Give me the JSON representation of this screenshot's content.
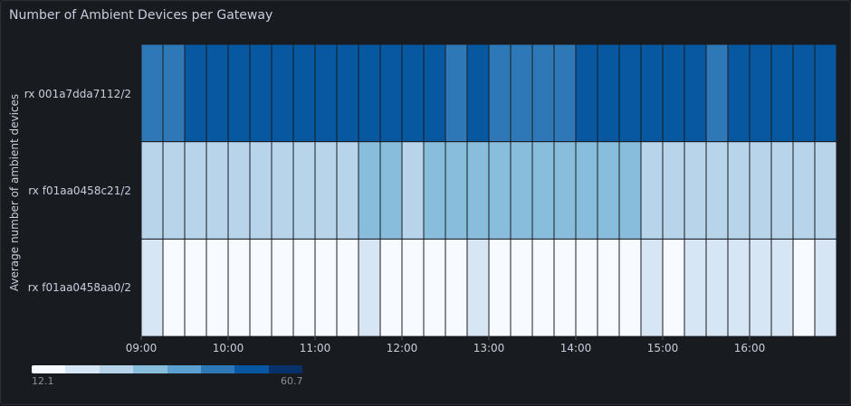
{
  "panel": {
    "title": "Number of Ambient Devices per Gateway"
  },
  "chart_data": {
    "type": "heatmap",
    "title": "Number of Ambient Devices per Gateway",
    "ylabel": "Average number of ambient devices",
    "xlabel": "",
    "x_start": "09:00",
    "x_interval_minutes": 15,
    "x_ticks": [
      "09:00",
      "10:00",
      "11:00",
      "12:00",
      "13:00",
      "14:00",
      "15:00",
      "16:00"
    ],
    "rows": [
      "rx 001a7dda7112/2",
      "rx f01aa0458c21/2",
      "rx f01aa0458aa0/2"
    ],
    "values": [
      [
        45,
        45,
        51,
        51,
        51,
        51,
        51,
        51,
        51,
        51,
        51,
        51,
        51,
        51,
        45,
        51,
        45,
        45,
        45,
        45,
        51,
        51,
        51,
        51,
        51,
        51,
        45,
        51,
        51,
        51,
        51,
        51
      ],
      [
        27,
        27,
        27,
        27,
        27,
        27,
        27,
        27,
        27,
        27,
        33,
        33,
        27,
        33,
        33,
        33,
        33,
        33,
        33,
        33,
        33,
        33,
        33,
        27,
        27,
        27,
        27,
        27,
        27,
        27,
        27,
        27
      ],
      [
        20,
        14,
        14,
        14,
        14,
        14,
        14,
        14,
        14,
        14,
        20,
        14,
        14,
        14,
        14,
        20,
        14,
        14,
        14,
        14,
        14,
        14,
        14,
        20,
        14,
        20,
        20,
        20,
        20,
        20,
        14,
        20
      ]
    ],
    "color_scale": {
      "min": 12.1,
      "max": 60.7,
      "colors": [
        "#f7fbff",
        "#d6e6f4",
        "#b7d4ea",
        "#88bedc",
        "#5a9fcf",
        "#2e78b7",
        "#0857a1",
        "#08306b"
      ]
    },
    "legend": {
      "min_label": "12.1",
      "max_label": "60.7",
      "placement": "bottom-left"
    }
  }
}
